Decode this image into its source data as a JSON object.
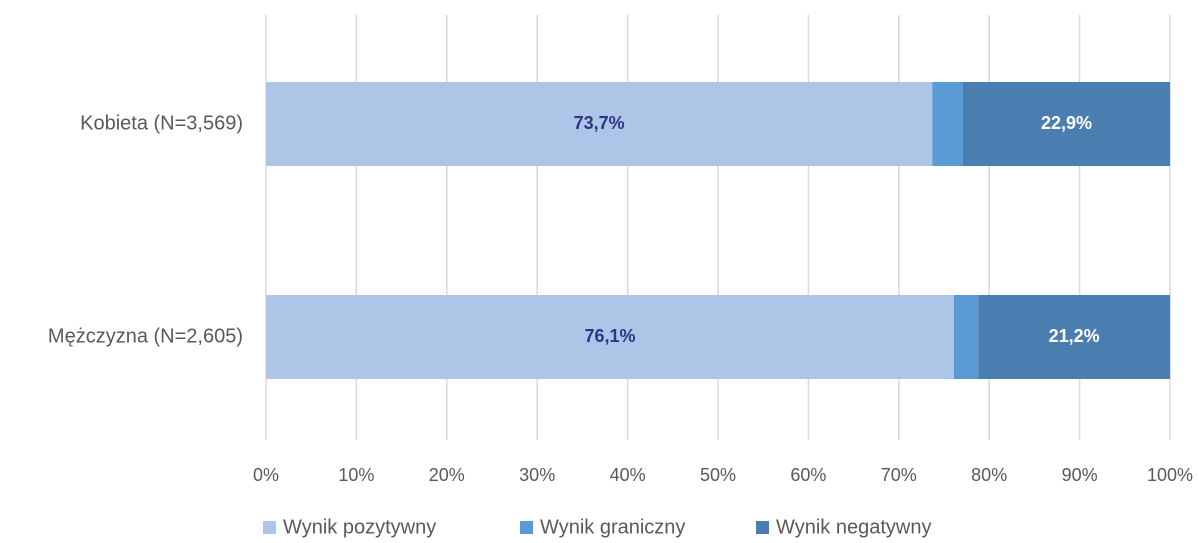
{
  "chart_data": {
    "type": "stacked-bar-horizontal",
    "categories": [
      "Kobieta (N=3,569)",
      "Mężczyzna (N=2,605)"
    ],
    "series": [
      {
        "name": "Wynik pozytywny",
        "color": "#adc5e7",
        "values": [
          73.7,
          76.1
        ],
        "value_labels": [
          "73,7%",
          "76,1%"
        ],
        "label_color": "#2e3587"
      },
      {
        "name": "Wynik graniczny",
        "color": "#5b9bd5",
        "values": [
          3.4,
          2.7
        ]
      },
      {
        "name": "Wynik negatywny",
        "color": "#4a7eb0",
        "values": [
          22.9,
          21.2
        ],
        "value_labels": [
          "22,9%",
          "21,2%"
        ],
        "label_color": "#ffffff"
      }
    ],
    "xlim": [
      0,
      100
    ],
    "xticks": [
      {
        "value": 0,
        "label": "0%"
      },
      {
        "value": 10,
        "label": "10%"
      },
      {
        "value": 20,
        "label": "20%"
      },
      {
        "value": 30,
        "label": "30%"
      },
      {
        "value": 40,
        "label": "40%"
      },
      {
        "value": 50,
        "label": "50%"
      },
      {
        "value": 60,
        "label": "60%"
      },
      {
        "value": 70,
        "label": "70%"
      },
      {
        "value": 80,
        "label": "80%"
      },
      {
        "value": 90,
        "label": "90%"
      },
      {
        "value": 100,
        "label": "100%"
      }
    ],
    "grid": true,
    "legend": "bottom"
  }
}
